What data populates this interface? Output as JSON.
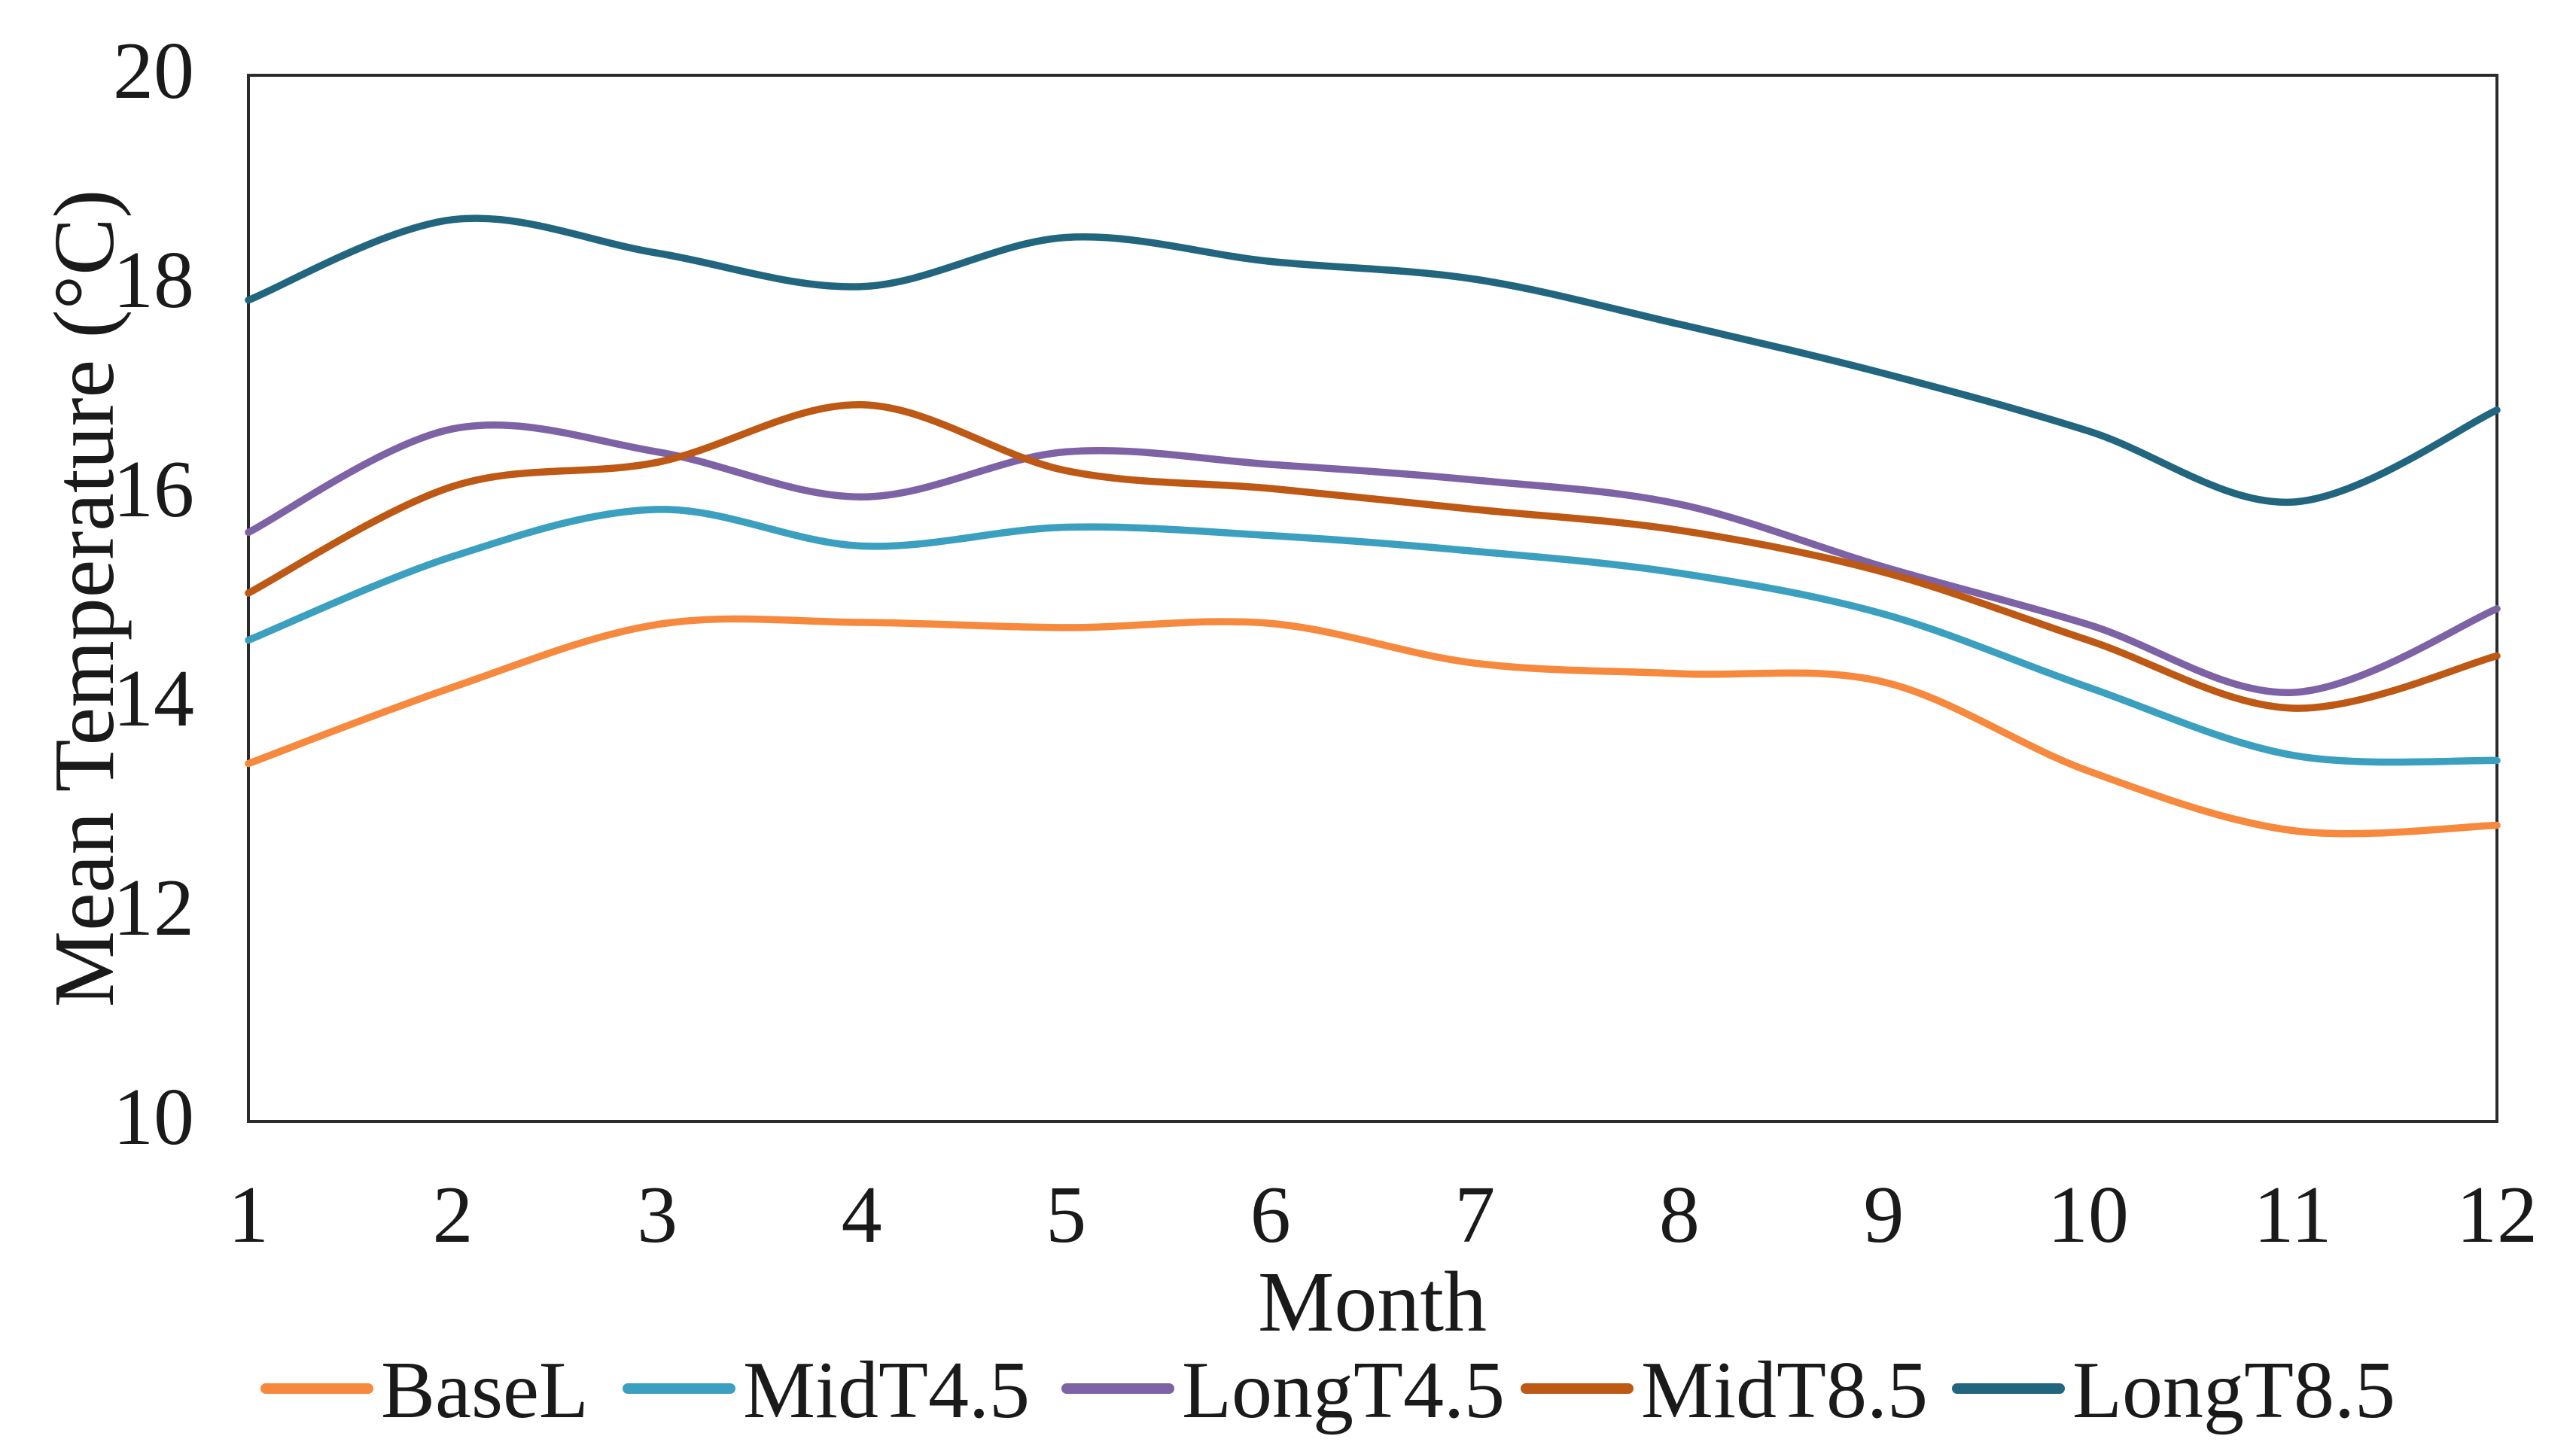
{
  "chart_data": {
    "type": "line",
    "title": "",
    "xlabel": "Month",
    "ylabel": "Mean Temperature (°C)",
    "x": [
      1,
      2,
      3,
      4,
      5,
      6,
      7,
      8,
      9,
      10,
      11,
      12
    ],
    "x_ticks": [
      "1",
      "2",
      "3",
      "4",
      "5",
      "6",
      "7",
      "8",
      "9",
      "10",
      "11",
      "12"
    ],
    "y_ticks": [
      "10",
      "12",
      "14",
      "16",
      "18",
      "20"
    ],
    "y_tick_values": [
      10,
      12,
      14,
      16,
      18,
      20
    ],
    "xlim": [
      1,
      12
    ],
    "ylim": [
      10,
      20
    ],
    "grid": false,
    "smooth": true,
    "legend_position": "bottom",
    "axis_color": "#2b2b2b",
    "text_color": "#1a1a1a",
    "series": [
      {
        "name": "BaseL",
        "color": "#F6893D",
        "values": [
          13.42,
          14.15,
          14.75,
          14.77,
          14.72,
          14.76,
          14.38,
          14.28,
          14.2,
          13.35,
          12.78,
          12.83
        ]
      },
      {
        "name": "MidT4.5",
        "color": "#3BA0BF",
        "values": [
          14.6,
          15.4,
          15.85,
          15.5,
          15.68,
          15.6,
          15.45,
          15.24,
          14.85,
          14.15,
          13.5,
          13.45
        ]
      },
      {
        "name": "LongT4.5",
        "color": "#7D63A5",
        "values": [
          15.63,
          16.62,
          16.4,
          15.97,
          16.4,
          16.28,
          16.13,
          15.9,
          15.3,
          14.75,
          14.1,
          14.9
        ]
      },
      {
        "name": "MidT8.5",
        "color": "#BD5914",
        "values": [
          15.05,
          16.07,
          16.3,
          16.85,
          16.22,
          16.05,
          15.85,
          15.65,
          15.25,
          14.6,
          13.95,
          14.45
        ]
      },
      {
        "name": "LongT8.5",
        "color": "#21667E",
        "values": [
          17.85,
          18.62,
          18.3,
          17.98,
          18.45,
          18.22,
          18.05,
          17.62,
          17.15,
          16.6,
          15.92,
          16.8
        ]
      }
    ]
  }
}
